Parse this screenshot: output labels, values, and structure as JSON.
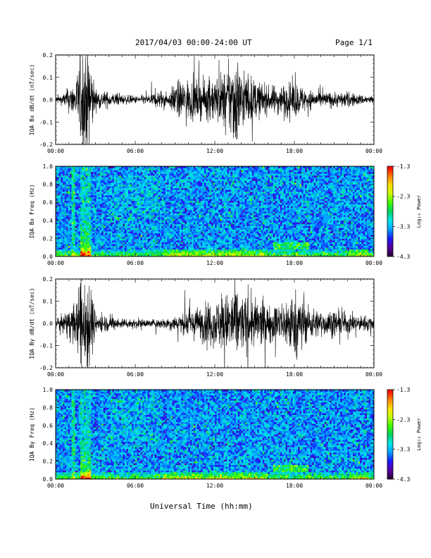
{
  "header": {
    "title": "2017/04/03  00:00-24:00 UT",
    "page": "Page 1/1"
  },
  "xlabel": "Universal Time (hh:mm)",
  "colors": {
    "background": "#ffffff",
    "waveform": "#000000",
    "spectrogram_base": "#0a1fd6",
    "colormap": [
      "#2a0033",
      "#5a00a0",
      "#1a1aff",
      "#00a0ff",
      "#00e8e8",
      "#00d060",
      "#40ff00",
      "#c8ff00",
      "#ffe000",
      "#ff8000",
      "#ff0000"
    ]
  },
  "chart_data": [
    {
      "type": "line",
      "ylabel": "IQA Bx dB/dt (nT/sec)",
      "xlim": [
        "00:00",
        "24:00"
      ],
      "xticks": [
        "00:00",
        "06:00",
        "12:00",
        "18:00",
        "00:00"
      ],
      "ylim": [
        -0.2,
        0.2
      ],
      "yticks": [
        "-0.2",
        "-0.1",
        "0.0",
        "0.1",
        "0.2"
      ],
      "envelope": {
        "hours": [
          0,
          0.5,
          1.0,
          1.5,
          2.0,
          2.5,
          3.0,
          4.0,
          5.0,
          6.0,
          7.0,
          8.0,
          8.5,
          9.0,
          10.0,
          11.0,
          12.0,
          13.0,
          13.5,
          14.0,
          15.0,
          16.0,
          17.0,
          18.0,
          19.0,
          20.0,
          21.0,
          22.0,
          23.0,
          24.0
        ],
        "amplitude": [
          0.015,
          0.02,
          0.05,
          0.07,
          0.21,
          0.21,
          0.04,
          0.03,
          0.02,
          0.015,
          0.02,
          0.04,
          0.02,
          0.07,
          0.08,
          0.07,
          0.09,
          0.12,
          0.2,
          0.12,
          0.08,
          0.05,
          0.06,
          0.07,
          0.04,
          0.03,
          0.03,
          0.03,
          0.02,
          0.015
        ]
      }
    },
    {
      "type": "heatmap",
      "ylabel": "IQA Bx Freq (Hz)",
      "xlim": [
        "00:00",
        "24:00"
      ],
      "xticks": [
        "00:00",
        "06:00",
        "12:00",
        "18:00",
        "00:00"
      ],
      "ylim": [
        0.0,
        1.0
      ],
      "yticks": [
        "0.0",
        "0.2",
        "0.4",
        "0.6",
        "0.8",
        "1.0"
      ],
      "colorbar": {
        "label": "Log₁₀ Power",
        "ticks": [
          "-1.3",
          "-2.3",
          "-3.3",
          "-4.3"
        ],
        "range": [
          -4.3,
          -1.3
        ]
      }
    },
    {
      "type": "line",
      "ylabel": "IQA By dB/dt (nT/sec)",
      "xlim": [
        "00:00",
        "24:00"
      ],
      "xticks": [
        "00:00",
        "06:00",
        "12:00",
        "18:00",
        "00:00"
      ],
      "ylim": [
        -0.2,
        0.2
      ],
      "yticks": [
        "-0.2",
        "-0.1",
        "0.0",
        "0.1",
        "0.2"
      ],
      "envelope": {
        "hours": [
          0,
          0.5,
          1.0,
          1.5,
          2.0,
          2.5,
          3.0,
          4.0,
          5.0,
          6.0,
          7.0,
          8.0,
          9.0,
          10.0,
          11.0,
          12.0,
          13.0,
          13.5,
          14.0,
          15.0,
          16.0,
          17.0,
          18.0,
          19.0,
          20.0,
          21.0,
          22.0,
          23.0,
          24.0
        ],
        "amplitude": [
          0.02,
          0.03,
          0.06,
          0.08,
          0.21,
          0.21,
          0.04,
          0.03,
          0.02,
          0.02,
          0.015,
          0.02,
          0.03,
          0.05,
          0.07,
          0.09,
          0.12,
          0.16,
          0.11,
          0.1,
          0.07,
          0.08,
          0.13,
          0.07,
          0.05,
          0.05,
          0.04,
          0.03,
          0.03
        ]
      }
    },
    {
      "type": "heatmap",
      "ylabel": "IQA By Freq (Hz)",
      "xlim": [
        "00:00",
        "24:00"
      ],
      "xticks": [
        "00:00",
        "06:00",
        "12:00",
        "18:00",
        "00:00"
      ],
      "ylim": [
        0.0,
        1.0
      ],
      "yticks": [
        "0.0",
        "0.2",
        "0.4",
        "0.6",
        "0.8",
        "1.0"
      ],
      "colorbar": {
        "label": "Log₁₀ Power",
        "ticks": [
          "-1.3",
          "-2.3",
          "-3.3",
          "-4.3"
        ],
        "range": [
          -4.3,
          -1.3
        ]
      }
    }
  ]
}
